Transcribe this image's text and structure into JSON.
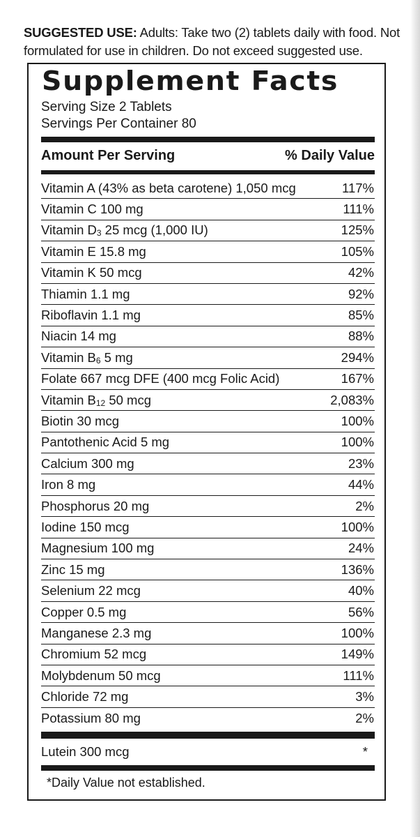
{
  "suggested_use": {
    "label": "SUGGESTED USE:",
    "text": " Adults: Take two (2) tablets daily with food. Not formulated for use in children. Do not exceed suggested use."
  },
  "facts": {
    "title": "Supplement Facts",
    "serving_size": "Serving Size 2 Tablets",
    "servings_per_container": "Servings Per Container 80",
    "header_amount": "Amount Per Serving",
    "header_dv": "% Daily Value",
    "rows": [
      {
        "pre": "Vitamin A (43% as beta carotene) 1,050 mcg",
        "sub": "",
        "post": "",
        "dv": "117%"
      },
      {
        "pre": "Vitamin C 100 mg",
        "sub": "",
        "post": "",
        "dv": "111%"
      },
      {
        "pre": "Vitamin D",
        "sub": "3",
        "post": " 25 mcg (1,000 IU)",
        "dv": "125%"
      },
      {
        "pre": "Vitamin E  15.8 mg",
        "sub": "",
        "post": "",
        "dv": "105%"
      },
      {
        "pre": "Vitamin K 50 mcg",
        "sub": "",
        "post": "",
        "dv": "42%"
      },
      {
        "pre": "Thiamin 1.1 mg",
        "sub": "",
        "post": "",
        "dv": "92%"
      },
      {
        "pre": "Riboflavin 1.1 mg",
        "sub": "",
        "post": "",
        "dv": "85%"
      },
      {
        "pre": "Niacin 14 mg",
        "sub": "",
        "post": "",
        "dv": "88%"
      },
      {
        "pre": "Vitamin B",
        "sub": "6",
        "post": " 5 mg",
        "dv": "294%"
      },
      {
        "pre": "Folate 667 mcg DFE (400 mcg Folic Acid)",
        "sub": "",
        "post": "",
        "dv": "167%"
      },
      {
        "pre": "Vitamin B",
        "sub": "12",
        "post": " 50 mcg",
        "dv": "2,083%"
      },
      {
        "pre": "Biotin 30 mcg",
        "sub": "",
        "post": "",
        "dv": "100%"
      },
      {
        "pre": "Pantothenic Acid 5 mg",
        "sub": "",
        "post": "",
        "dv": "100%"
      },
      {
        "pre": "Calcium 300 mg",
        "sub": "",
        "post": "",
        "dv": "23%"
      },
      {
        "pre": "Iron 8 mg",
        "sub": "",
        "post": "",
        "dv": "44%"
      },
      {
        "pre": "Phosphorus 20 mg",
        "sub": "",
        "post": "",
        "dv": "2%"
      },
      {
        "pre": "Iodine 150 mcg",
        "sub": "",
        "post": "",
        "dv": "100%"
      },
      {
        "pre": "Magnesium 100 mg",
        "sub": "",
        "post": "",
        "dv": "24%"
      },
      {
        "pre": "Zinc 15 mg",
        "sub": "",
        "post": "",
        "dv": "136%"
      },
      {
        "pre": "Selenium 22 mcg",
        "sub": "",
        "post": "",
        "dv": "40%"
      },
      {
        "pre": "Copper 0.5 mg",
        "sub": "",
        "post": "",
        "dv": "56%"
      },
      {
        "pre": "Manganese 2.3 mg",
        "sub": "",
        "post": "",
        "dv": "100%"
      },
      {
        "pre": "Chromium 52 mcg",
        "sub": "",
        "post": "",
        "dv": "149%"
      },
      {
        "pre": "Molybdenum 50 mcg",
        "sub": "",
        "post": "",
        "dv": "111%"
      },
      {
        "pre": "Chloride 72 mg",
        "sub": "",
        "post": "",
        "dv": "3%"
      },
      {
        "pre": "Potassium 80 mg",
        "sub": "",
        "post": "",
        "dv": "2%"
      }
    ],
    "lutein": {
      "name": "Lutein 300 mcg",
      "dv": "*"
    },
    "footnote": "*Daily Value not established."
  },
  "colors": {
    "text": "#1a1a1a",
    "background": "#ffffff"
  }
}
